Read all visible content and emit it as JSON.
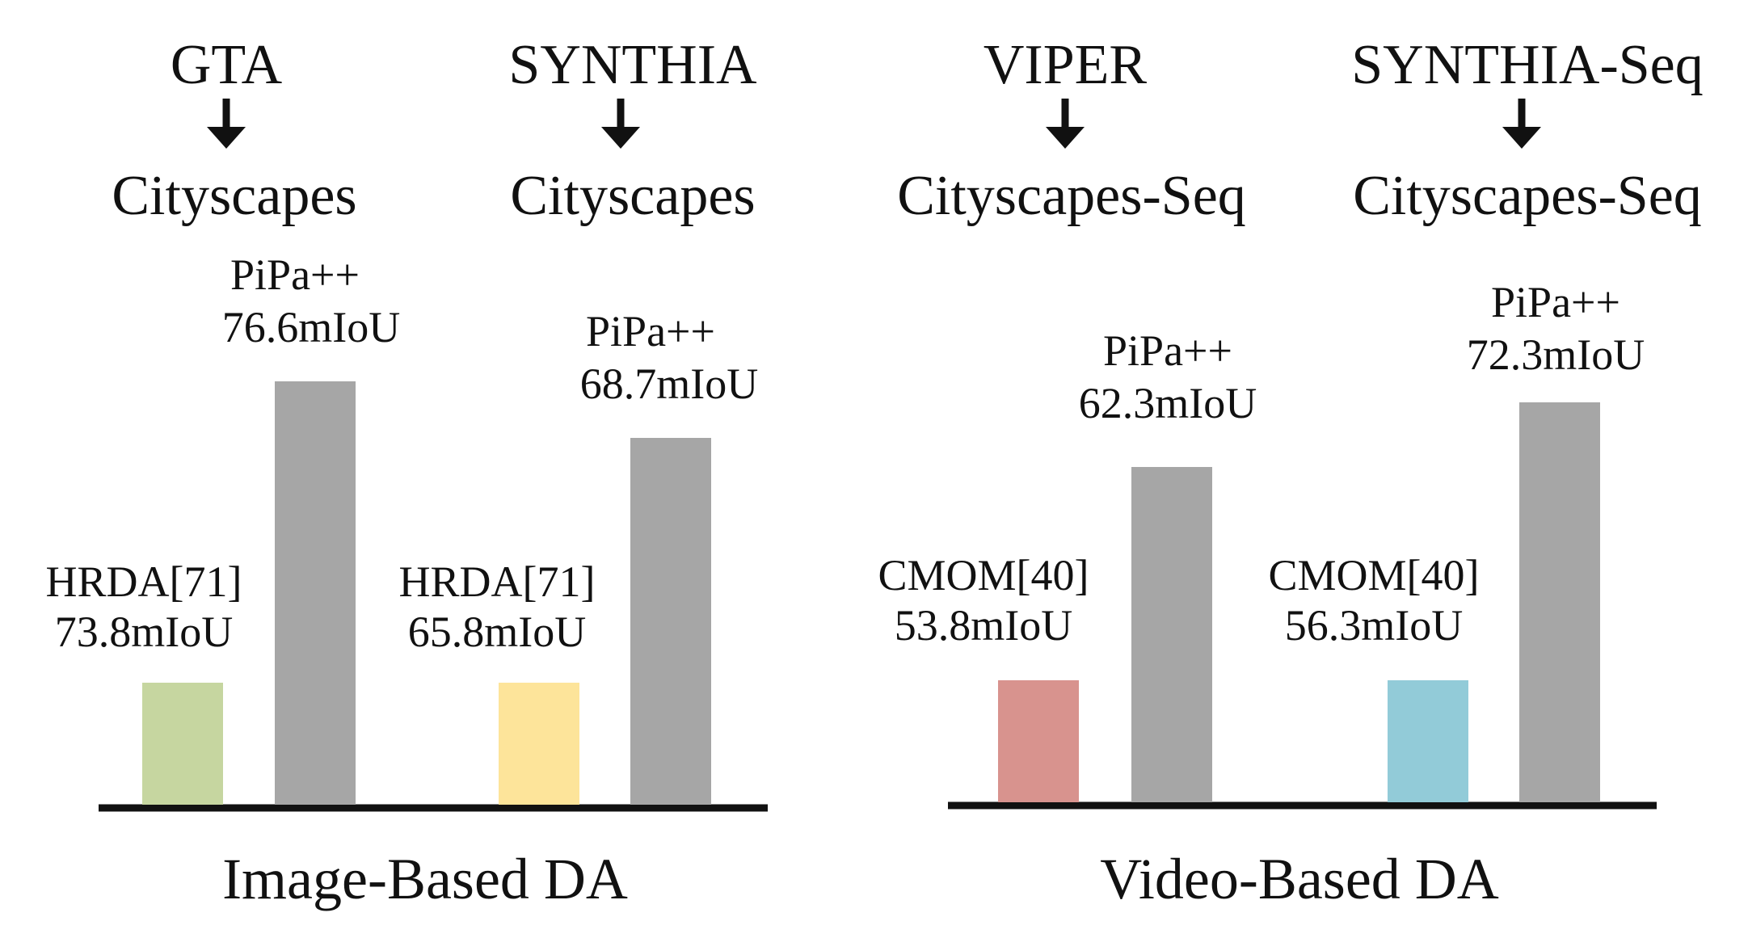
{
  "chart_data": {
    "type": "bar",
    "unit": "mIoU",
    "groups": [
      {
        "name": "Image-Based DA",
        "tasks": [
          {
            "source": "GTA",
            "target": "Cityscapes",
            "bars": [
              {
                "method": "HRDA[71]",
                "value": 73.8,
                "label": "73.8mIoU",
                "color": "#c6d6a0"
              },
              {
                "method": "PiPa++",
                "value": 76.6,
                "label": "76.6mIoU",
                "color": "#a6a6a6"
              }
            ]
          },
          {
            "source": "SYNTHIA",
            "target": "Cityscapes",
            "bars": [
              {
                "method": "HRDA[71]",
                "value": 65.8,
                "label": "65.8mIoU",
                "color": "#fde49a"
              },
              {
                "method": "PiPa++",
                "value": 68.7,
                "label": "68.7mIoU",
                "color": "#a6a6a6"
              }
            ]
          }
        ]
      },
      {
        "name": "Video-Based DA",
        "tasks": [
          {
            "source": "VIPER",
            "target": "Cityscapes-Seq",
            "bars": [
              {
                "method": "CMOM[40]",
                "value": 53.8,
                "label": "53.8mIoU",
                "color": "#d8938e"
              },
              {
                "method": "PiPa++",
                "value": 62.3,
                "label": "62.3mIoU",
                "color": "#a6a6a6"
              }
            ]
          },
          {
            "source": "SYNTHIA-Seq",
            "target": "Cityscapes-Seq",
            "bars": [
              {
                "method": "CMOM[40]",
                "value": 56.3,
                "label": "56.3mIoU",
                "color": "#92cbd8"
              },
              {
                "method": "PiPa++",
                "value": 72.3,
                "label": "72.3mIoU",
                "color": "#a6a6a6"
              }
            ]
          }
        ]
      }
    ]
  },
  "colors": {
    "axis": "#111111",
    "text": "#111111"
  }
}
